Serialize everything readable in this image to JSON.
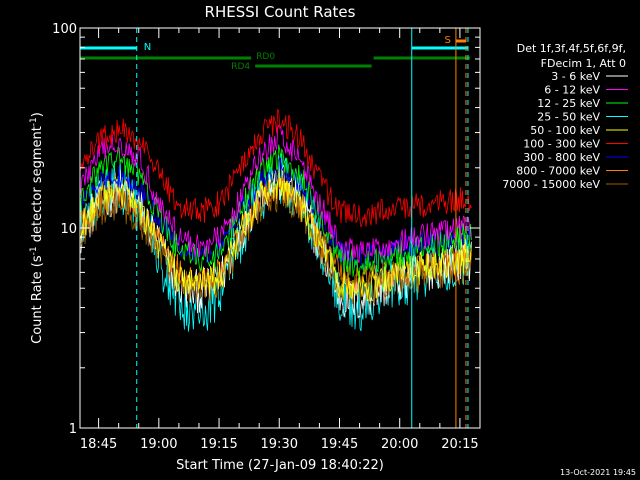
{
  "chart_data": {
    "type": "line",
    "title": "RHESSI Count Rates",
    "xlabel": "Start Time (27-Jan-09 18:40:22)",
    "ylabel": "Count Rate (s⁻¹ detector segment⁻¹)",
    "ylabel_main": "Count Rate (s",
    "ylabel_sup1": "-1",
    "ylabel_mid": " detector segment",
    "ylabel_sup2": "-1",
    "ylabel_end": ")",
    "y_scale": "log",
    "ylim": [
      1,
      100
    ],
    "y_ticks": [
      1,
      10,
      100
    ],
    "y_tick_labels": [
      "1",
      "10",
      "100"
    ],
    "xlim": [
      "18:40:22",
      "20:20:00"
    ],
    "x_ticks": [
      "18:45",
      "19:00",
      "19:15",
      "19:30",
      "19:45",
      "20:00",
      "20:15"
    ],
    "grid": false,
    "legend_position": "top-right",
    "legend_header": [
      "Det 1f,3f,4f,5f,6f,9f,",
      "FDecim 1, Att 0"
    ],
    "x_sample_minutes": [
      0,
      5,
      10,
      15,
      20,
      25,
      30,
      35,
      40,
      45,
      50,
      55,
      60,
      65,
      70,
      75,
      80,
      85,
      90,
      95
    ],
    "series": [
      {
        "name": "3 - 6 keV",
        "color": "#ffffff",
        "values": [
          9.5,
          13.5,
          15.5,
          12.5,
          8,
          5,
          4.8,
          5.5,
          9.5,
          15.5,
          17,
          13.5,
          8,
          4.5,
          4.3,
          5,
          5.5,
          6,
          6.5,
          7
        ]
      },
      {
        "name": "6 - 12 keV",
        "color": "#ff00ff",
        "values": [
          16,
          24,
          27,
          22,
          13,
          9,
          8,
          9,
          14,
          23,
          29,
          22,
          13,
          8,
          7.5,
          8,
          8.5,
          9,
          9.5,
          10
        ]
      },
      {
        "name": "12 - 25 keV",
        "color": "#00ff00",
        "values": [
          13,
          20,
          22.5,
          18,
          11,
          7.5,
          7,
          7.5,
          12,
          19.5,
          23,
          18,
          11,
          7,
          6.5,
          7,
          7.5,
          8,
          8.5,
          9
        ]
      },
      {
        "name": "25 - 50 keV",
        "color": "#00ffff",
        "values": [
          11,
          15,
          16,
          12.5,
          7,
          4.2,
          3.8,
          5,
          9,
          14.5,
          18,
          14,
          8,
          4.3,
          4.2,
          5,
          5.5,
          6,
          6.5,
          7
        ]
      },
      {
        "name": "50 - 100 keV",
        "color": "#ffff00",
        "values": [
          10,
          14,
          15.5,
          12.5,
          8,
          5.5,
          5.3,
          5.8,
          9.5,
          15,
          17,
          13,
          8,
          5.2,
          5,
          5.5,
          6,
          6.3,
          6.7,
          7
        ]
      },
      {
        "name": "100 - 300 keV",
        "color": "#ff0000",
        "values": [
          20,
          28,
          31,
          27,
          18,
          13,
          12,
          13.5,
          20,
          30,
          35,
          28,
          17,
          12,
          11.5,
          12,
          12.5,
          13,
          13.5,
          14
        ]
      },
      {
        "name": "300 - 800 keV",
        "color": "#0000ff",
        "values": [
          13,
          17,
          18,
          15.5,
          11,
          8,
          7.5,
          8,
          12,
          17,
          20,
          17,
          11,
          7.5,
          7,
          7.5,
          8,
          8.3,
          8.6,
          9
        ]
      },
      {
        "name": "800 - 7000 keV",
        "color": "#ff8000",
        "values": [
          10,
          13.5,
          14.5,
          12,
          8.5,
          6,
          5.5,
          6,
          9.5,
          14,
          16,
          13,
          8.5,
          5.8,
          5.5,
          5.8,
          6,
          6.3,
          6.6,
          7
        ]
      },
      {
        "name": "7000 - 15000 keV",
        "color": "#a06000",
        "values": [
          9,
          12.5,
          13.5,
          11,
          7.5,
          5.3,
          5,
          5.5,
          8.5,
          13,
          15,
          12,
          7.5,
          5,
          4.8,
          5.2,
          5.5,
          5.8,
          6,
          6.3
        ]
      }
    ],
    "annotations": {
      "night_label": "N",
      "saa_label": "S",
      "rd0_label": "RD0",
      "rd4_label": "RD4",
      "night_bars": [
        {
          "start": "18:40:22",
          "end": "18:54:30"
        },
        {
          "start": "20:03:00",
          "end": "20:17:00"
        }
      ],
      "saa_bar": {
        "start": "20:14:00",
        "end": "20:16:30"
      },
      "rd0_bars": [
        {
          "start": "18:40:22",
          "end": "19:23:00"
        },
        {
          "start": "19:53:30",
          "end": "20:17:30"
        }
      ],
      "rd4_bar": {
        "start": "19:24:00",
        "end": "19:53:00"
      },
      "cyan_lines": [
        "18:40:22",
        "18:54:30",
        "20:03:00",
        "20:17:00"
      ],
      "orange_lines": [
        "20:14:00",
        "20:16:30"
      ]
    }
  },
  "footer_date": "13-Oct-2021 19:45",
  "colors": {
    "background": "#000000",
    "axes": "#ffffff",
    "night": "#00ffff",
    "saa": "#ff8000",
    "attenuator_state": "#008000"
  }
}
